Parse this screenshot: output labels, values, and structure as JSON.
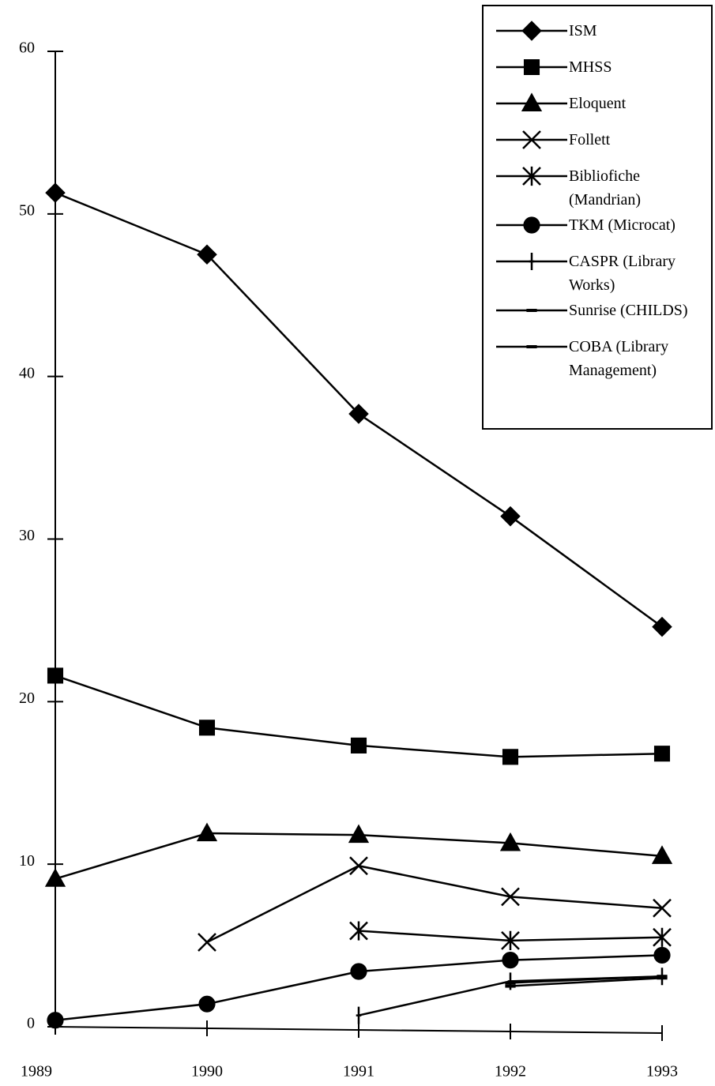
{
  "chart_data": {
    "type": "line",
    "categories": [
      "1989",
      "1990",
      "1991",
      "1992",
      "1993"
    ],
    "ylim": [
      0,
      60
    ],
    "yticks": [
      0,
      10,
      20,
      30,
      40,
      50,
      60
    ],
    "legend": "top-right",
    "series": [
      {
        "name": "ISM",
        "color": "#000000",
        "marker": "diamond",
        "values": [
          51.3,
          47.5,
          37.7,
          31.4,
          24.6
        ]
      },
      {
        "name": "MHSS",
        "color": "#000000",
        "marker": "square",
        "values": [
          21.6,
          18.4,
          17.3,
          16.6,
          16.8
        ]
      },
      {
        "name": "Eloquent",
        "color": "#000000",
        "marker": "triangle",
        "values": [
          9.1,
          11.9,
          11.8,
          11.3,
          10.5
        ]
      },
      {
        "name": "Follett",
        "color": "#000000",
        "marker": "x",
        "values": [
          null,
          5.2,
          9.9,
          8.0,
          7.3
        ]
      },
      {
        "name": "Bibliofiche (Mandrian)",
        "color": "#000000",
        "marker": "asterisk",
        "values": [
          null,
          null,
          5.9,
          5.3,
          5.5
        ]
      },
      {
        "name": "TKM (Microcat)",
        "color": "#000000",
        "marker": "circle",
        "values": [
          0.4,
          1.4,
          3.4,
          4.1,
          4.4
        ]
      },
      {
        "name": "CASPR (Library Works)",
        "color": "#000000",
        "marker": "plus",
        "values": [
          null,
          null,
          0.7,
          2.8,
          3.1
        ]
      },
      {
        "name": "Sunrise (CHILDS)",
        "color": "#000000",
        "marker": "dash",
        "values": [
          null,
          null,
          null,
          2.5,
          3.0
        ]
      },
      {
        "name": "COBA (Library Management)",
        "color": "#000000",
        "marker": "dash",
        "values": [
          null,
          null,
          null,
          2.7,
          3.1
        ]
      }
    ]
  }
}
